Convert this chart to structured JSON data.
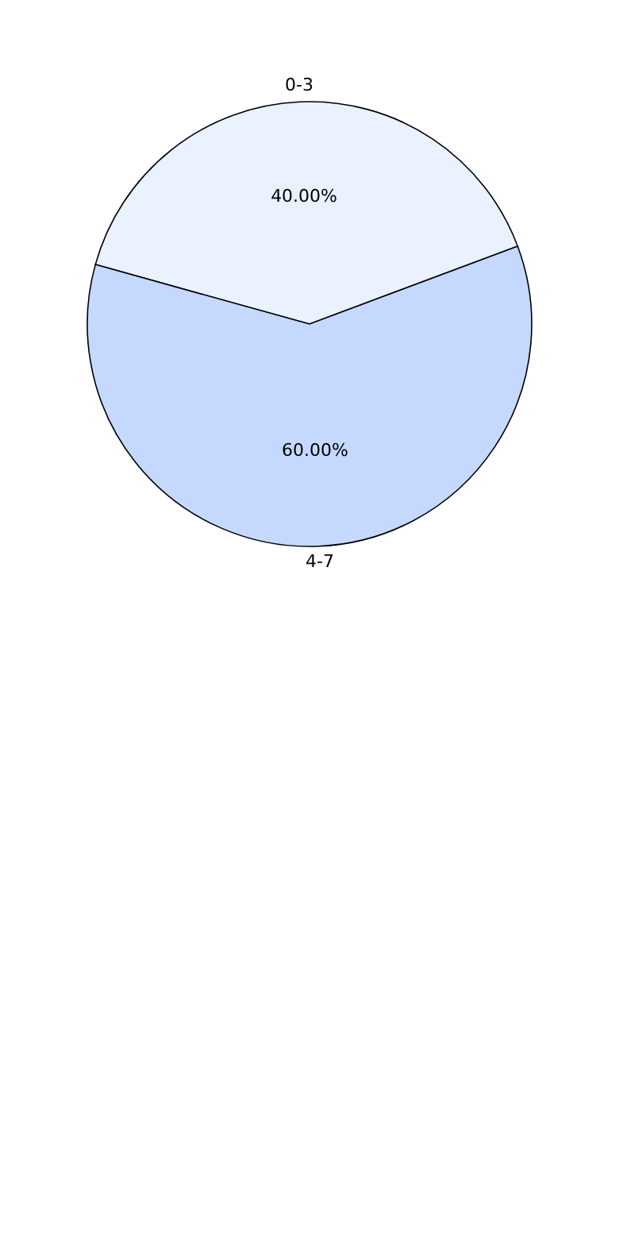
{
  "chart_data": {
    "type": "pie",
    "categories": [
      "0-3",
      "4-7"
    ],
    "values": [
      40,
      60
    ],
    "colors": [
      "#eaf1ff",
      "#c5d9ff"
    ],
    "value_labels": [
      "40.00%",
      "60.00%"
    ]
  }
}
